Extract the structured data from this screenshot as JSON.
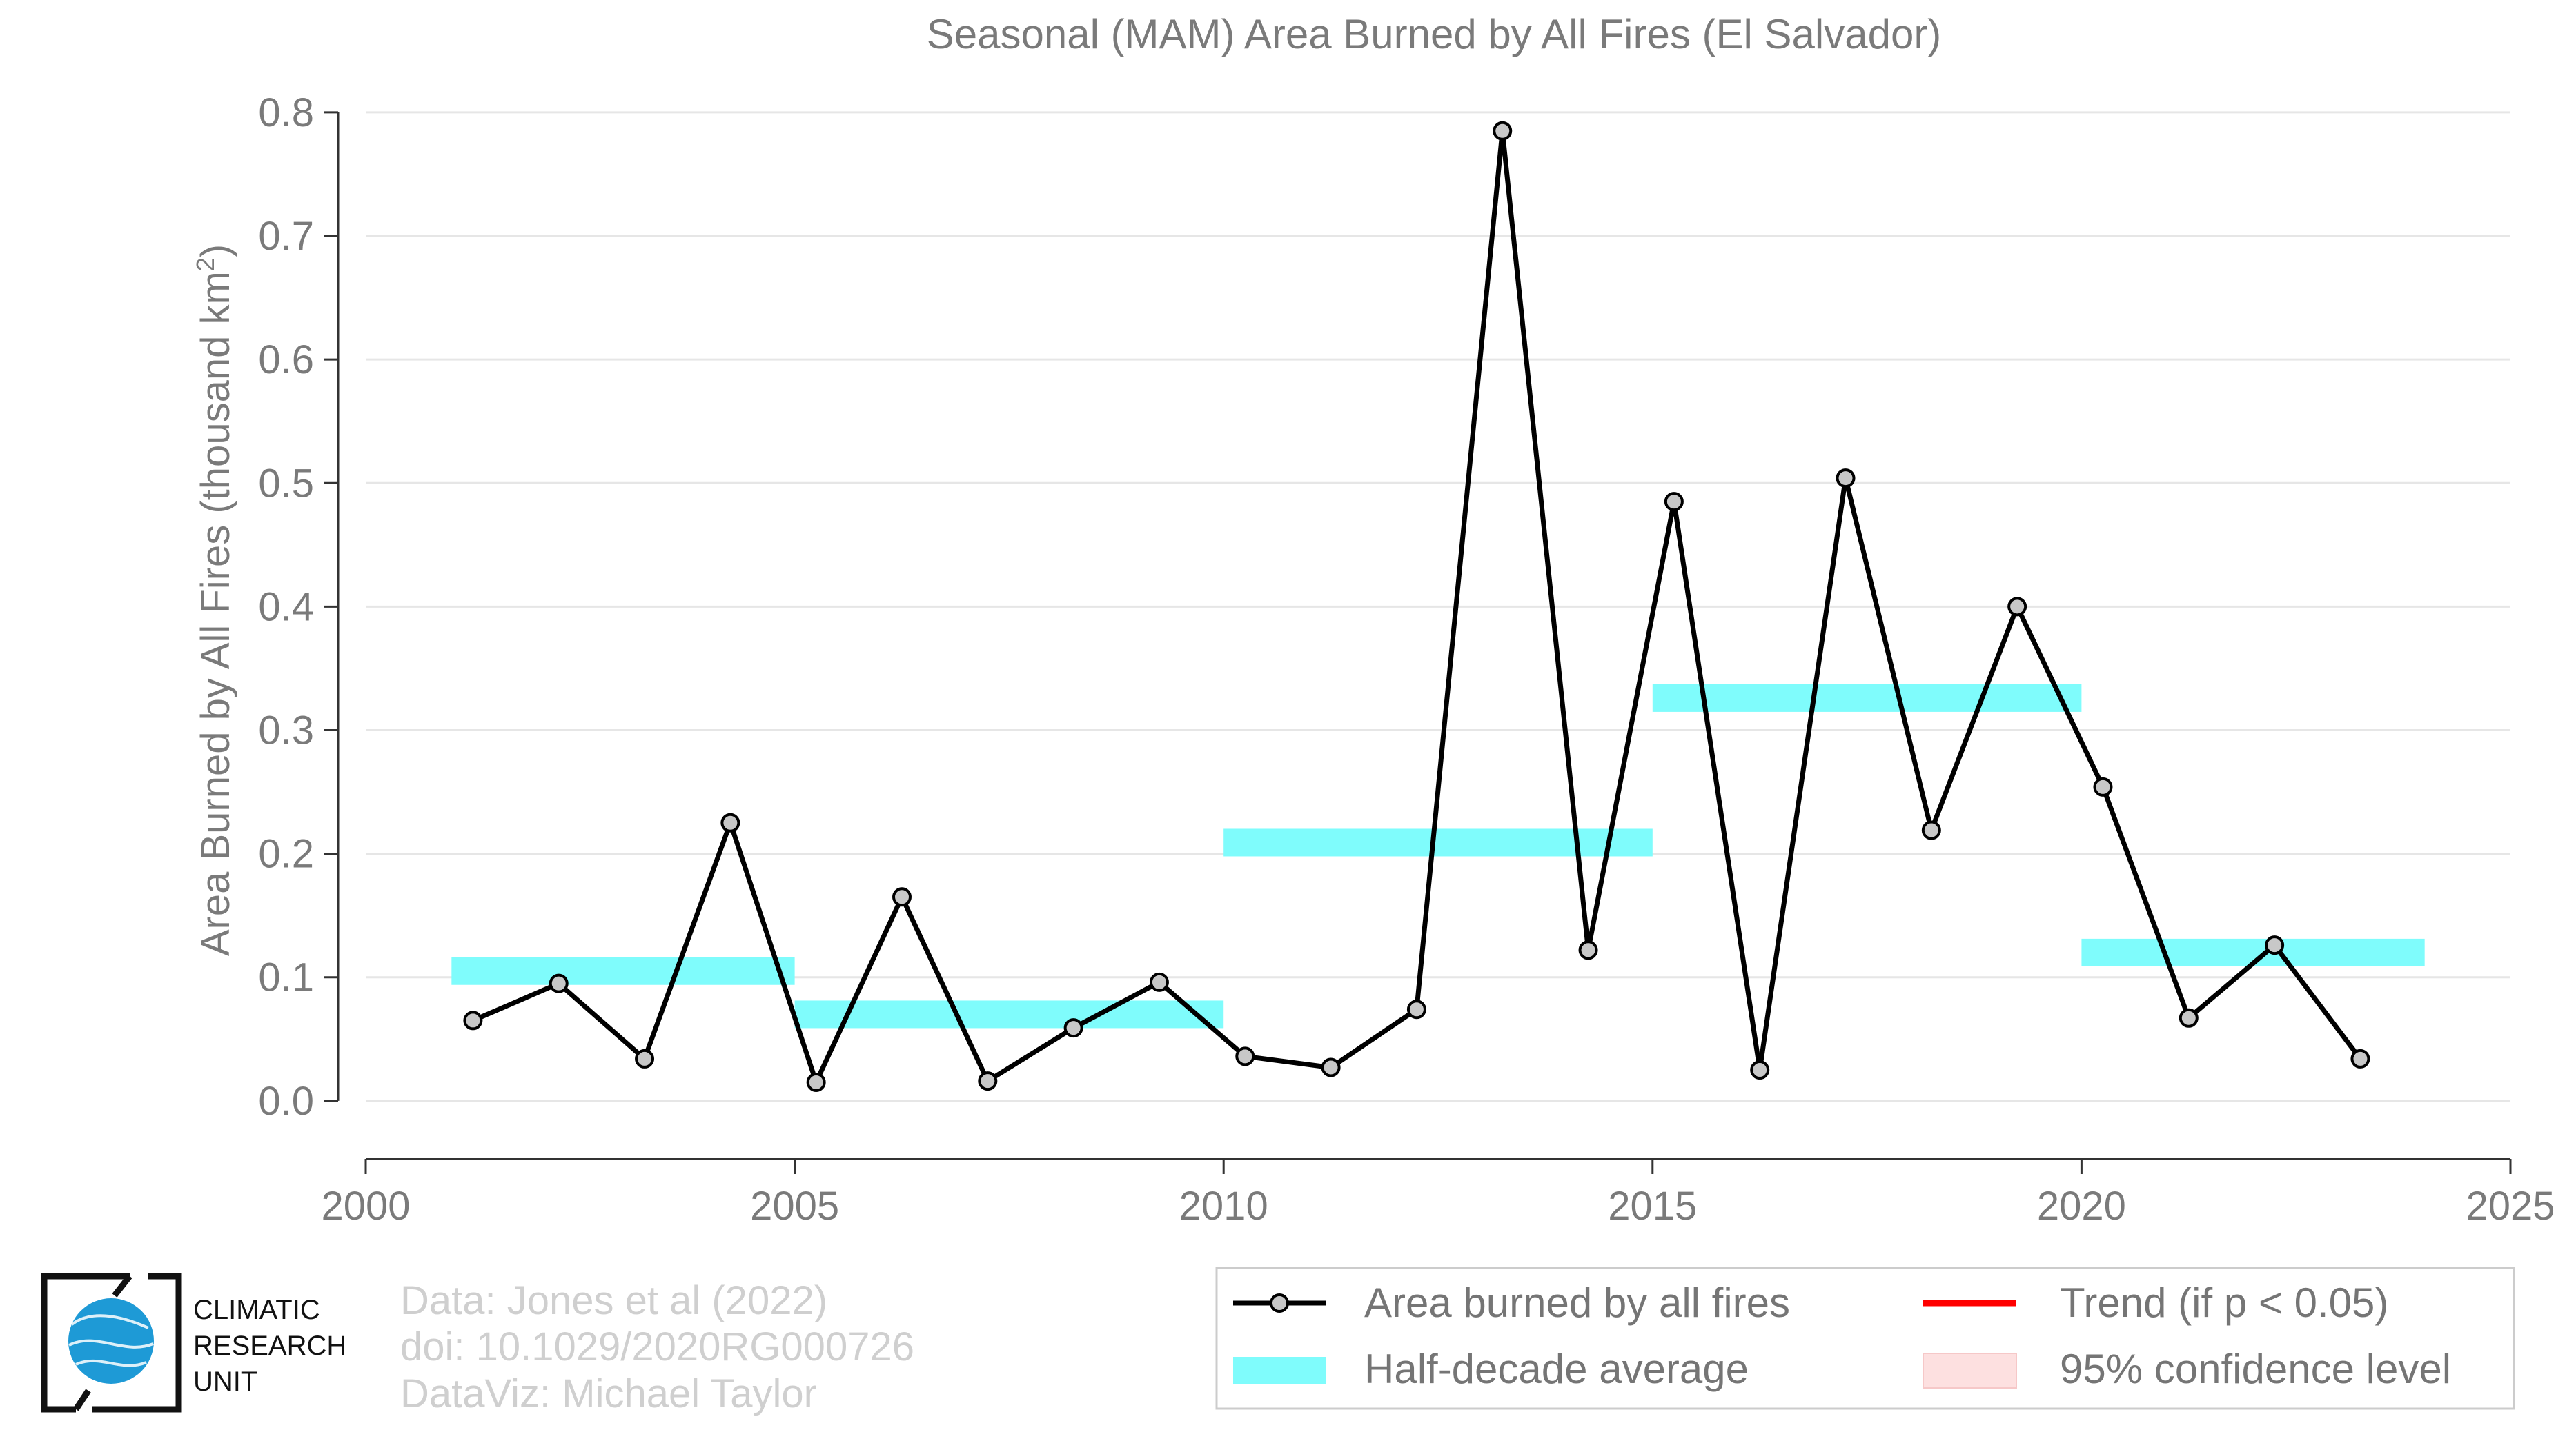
{
  "chart_data": {
    "type": "line",
    "title": "Seasonal (MAM) Area Burned by All Fires (El Salvador)",
    "xlabel": "",
    "ylabel": "Area Burned by All Fires (thousand km",
    "ylabel_superscript": "2",
    "ylabel_close": ")",
    "xlim": [
      2000,
      2025
    ],
    "ylim": [
      -0.047,
      0.81
    ],
    "x_ticks": [
      2000,
      2005,
      2010,
      2015,
      2020,
      2025
    ],
    "x_tick_labels": [
      "2000",
      "2005",
      "2010",
      "2015",
      "2020",
      "2025"
    ],
    "y_ticks": [
      0.0,
      0.1,
      0.2,
      0.3,
      0.4,
      0.5,
      0.6,
      0.7,
      0.8
    ],
    "y_tick_labels": [
      "0.0",
      "0.1",
      "0.2",
      "0.3",
      "0.4",
      "0.5",
      "0.6",
      "0.7",
      "0.8"
    ],
    "grid": "horizontal",
    "series": [
      {
        "name": "Area burned by all fires",
        "color": "#000000",
        "marker_fill": "#c8c8c8",
        "x": [
          2001.25,
          2002.25,
          2003.25,
          2004.25,
          2005.25,
          2006.25,
          2007.25,
          2008.25,
          2009.25,
          2010.25,
          2011.25,
          2012.25,
          2013.25,
          2014.25,
          2015.25,
          2016.25,
          2017.25,
          2018.25,
          2019.25,
          2020.25,
          2021.25,
          2022.25,
          2023.25
        ],
        "values": [
          0.065,
          0.095,
          0.034,
          0.225,
          0.015,
          0.165,
          0.016,
          0.059,
          0.096,
          0.036,
          0.027,
          0.074,
          0.785,
          0.122,
          0.485,
          0.025,
          0.504,
          0.219,
          0.4,
          0.254,
          0.067,
          0.126,
          0.034
        ]
      }
    ],
    "half_decade_averages": {
      "name": "Half-decade average",
      "color": "#7ffcfc",
      "segments": [
        {
          "x_start": 2001,
          "x_end": 2005,
          "value": 0.105
        },
        {
          "x_start": 2005,
          "x_end": 2010,
          "value": 0.07
        },
        {
          "x_start": 2010,
          "x_end": 2015,
          "value": 0.209
        },
        {
          "x_start": 2015,
          "x_end": 2020,
          "value": 0.326
        },
        {
          "x_start": 2020,
          "x_end": 2024,
          "value": 0.12
        }
      ]
    },
    "legend": {
      "position": "bottom-right",
      "entries": [
        {
          "key": "line",
          "label": "Area burned by all fires",
          "color": "#000000"
        },
        {
          "key": "trend",
          "label": "Trend (if p < 0.05)",
          "color": "#ff0000"
        },
        {
          "key": "avg",
          "label": "Half-decade average",
          "color": "#7ffcfc"
        },
        {
          "key": "ci",
          "label": "95% confidence level",
          "color": "#fde0e0"
        }
      ]
    }
  },
  "credits": {
    "line1": "Data: Jones et al (2022)",
    "line2": "doi: 10.1029/2020RG000726",
    "line3": "DataViz: Michael Taylor"
  },
  "logo": {
    "line1": "CLIMATIC",
    "line2": "RESEARCH",
    "line3": "UNIT",
    "globe_color": "#1e9ad6"
  }
}
